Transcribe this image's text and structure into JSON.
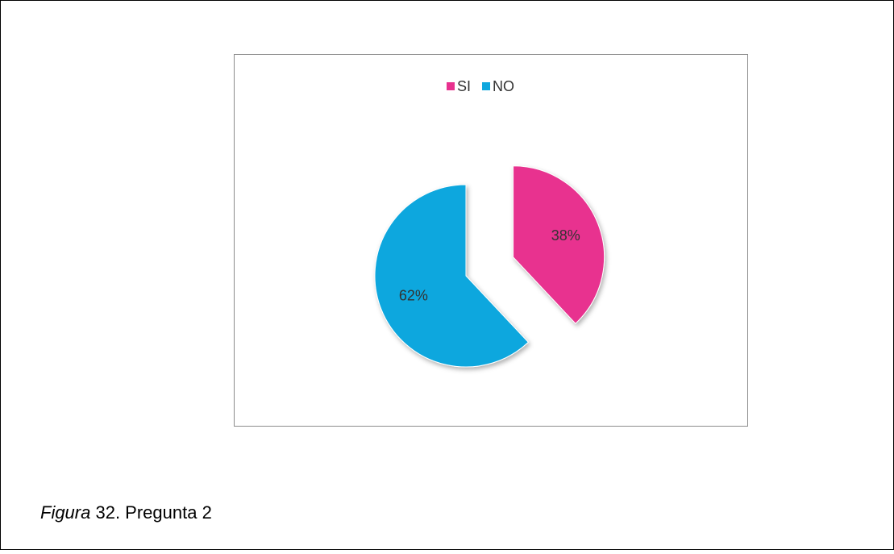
{
  "chart_data": {
    "type": "pie",
    "categories": [
      "SI",
      "NO"
    ],
    "values": [
      38,
      62
    ],
    "value_labels": [
      "38%",
      "62%"
    ],
    "colors": [
      "#e8318f",
      "#0ea7de"
    ],
    "legend": "top"
  },
  "caption": {
    "label": "Figura",
    "text": "32. Pregunta 2"
  }
}
